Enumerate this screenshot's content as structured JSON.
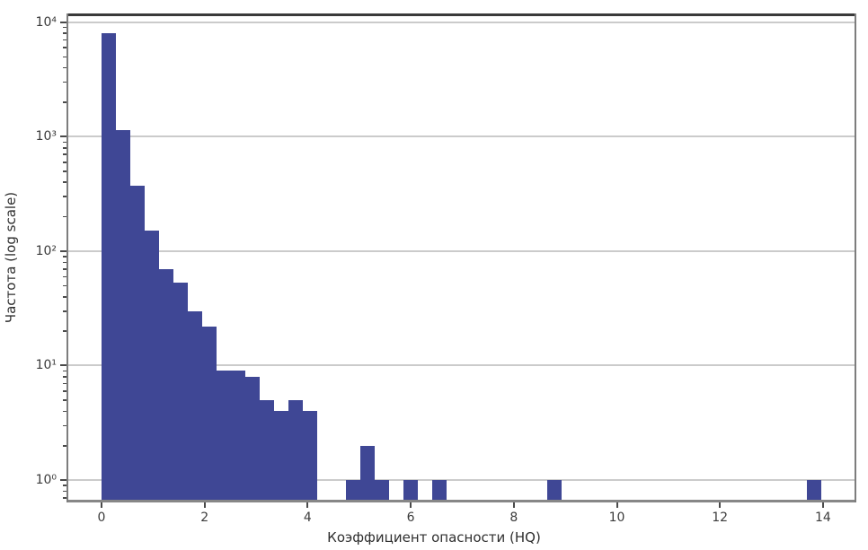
{
  "chart_data": {
    "type": "bar",
    "subtype": "histogram",
    "title": "",
    "xlabel": "Коэффициент опасности (HQ)",
    "ylabel": "Частота (log scale)",
    "x_tick_values": [
      0,
      2,
      4,
      6,
      8,
      10,
      12,
      14
    ],
    "y_tick_labels": [
      "10⁰",
      "10¹",
      "10²",
      "10³",
      "10⁴"
    ],
    "y_tick_exponents": [
      0,
      1,
      2,
      3,
      4
    ],
    "y_scale": "log",
    "grid": "horizontal-major-only",
    "legend": "none",
    "xlim": [
      -0.68,
      14.65
    ],
    "ylim": [
      0.64,
      11900
    ],
    "bin_start": 0,
    "bin_width": 0.2792,
    "counts": [
      8000,
      1150,
      370,
      150,
      70,
      53,
      30,
      22,
      9,
      9,
      8,
      5,
      4,
      5,
      4,
      0,
      0,
      1,
      2,
      1,
      0,
      1,
      0,
      1,
      0,
      0,
      0,
      0,
      0,
      0,
      0,
      1,
      0,
      0,
      0,
      0,
      0,
      0,
      0,
      0,
      0,
      0,
      0,
      0,
      0,
      0,
      0,
      0,
      0,
      1
    ],
    "colors": {
      "bar_fill": "#3F4795",
      "gridline": "#cbcbcb",
      "spine_top": "#3a3a3a",
      "spine_side": "#7d7d7d",
      "spine_bottom": "#878787",
      "tick": "#4a4a4a",
      "text": "#3b3b3b"
    }
  }
}
